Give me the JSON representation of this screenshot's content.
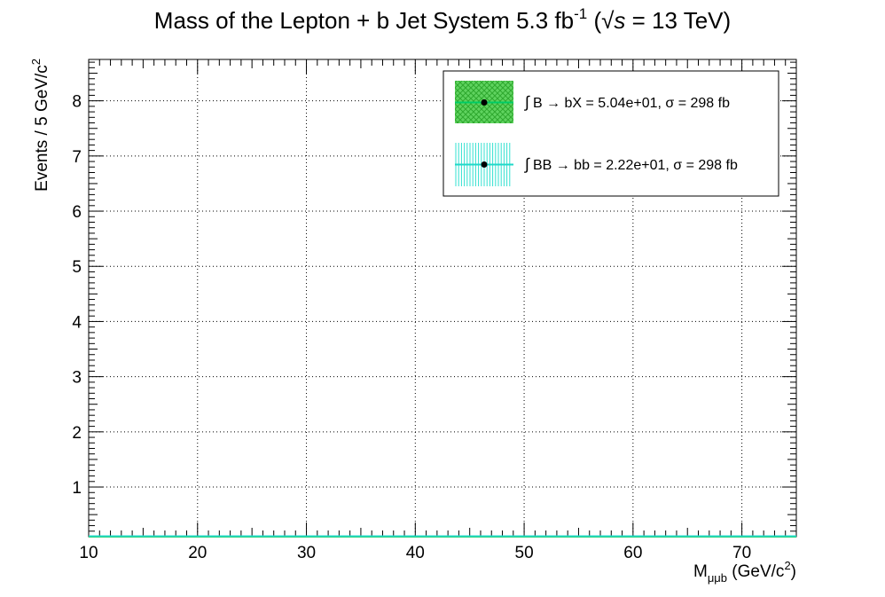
{
  "title": {
    "main": "Mass of the Lepton + b Jet System 5.3 fb",
    "lumi_exp": "-1",
    "open": " (",
    "sqrt": "√",
    "s": "s",
    "energy": " = 13 TeV)"
  },
  "axes": {
    "x_main": "M",
    "x_sub": "μμb",
    "x_unit": " (GeV/c",
    "x_unit_exp": "2",
    "x_unit_close": ")",
    "y_main": "Events / 5 GeV/c",
    "y_exp": "2"
  },
  "legend": [
    {
      "integral": "∫",
      "label": "B → bX = 5.04e+01, σ = 298 fb",
      "color": "#33cc33",
      "line_color": "#00cc66",
      "fill": "crosshatch"
    },
    {
      "integral": "∫",
      "label": "BB → bb = 2.22e+01, σ = 298 fb",
      "color": "#33e0d0",
      "line_color": "#20d8c8",
      "fill": "vertical-lines"
    }
  ],
  "chart_data": {
    "type": "line",
    "title": "Mass of the Lepton + b Jet System 5.3 fb-1 (√s = 13 TeV)",
    "xlabel": "M_μμb (GeV/c^2)",
    "ylabel": "Events / 5 GeV/c^2",
    "xlim": [
      10,
      75
    ],
    "ylim": [
      0.1,
      8.75
    ],
    "x_ticks": [
      10,
      20,
      30,
      40,
      50,
      60,
      70
    ],
    "y_ticks": [
      1,
      2,
      3,
      4,
      5,
      6,
      7,
      8
    ],
    "grid": true,
    "legend_position": "top-right",
    "series": [
      {
        "name": "∫ B → bX = 5.04e+01, σ = 298 fb",
        "x": [
          10,
          75
        ],
        "y": [
          0.1,
          0.1
        ],
        "color": "#33cc33"
      },
      {
        "name": "∫ BB → bb = 2.22e+01, σ = 298 fb",
        "x": [
          10,
          75
        ],
        "y": [
          0.1,
          0.1
        ],
        "color": "#20d8c8"
      }
    ]
  }
}
